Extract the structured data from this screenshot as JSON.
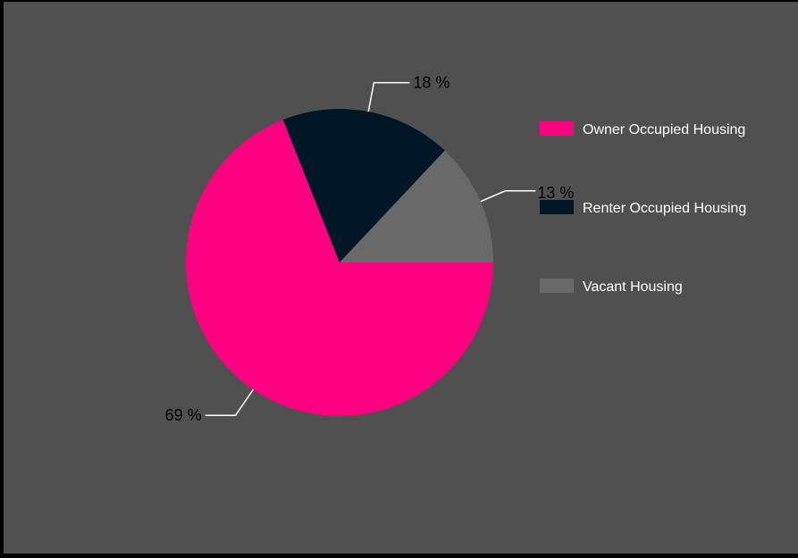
{
  "chart_data": {
    "type": "pie",
    "title": "",
    "categories": [
      "Owner Occupied Housing",
      "Renter Occupied Housing",
      "Vacant Housing"
    ],
    "values": [
      69,
      18,
      13
    ],
    "value_labels": [
      "69 %",
      "18 %",
      "13 %"
    ],
    "colors": [
      "#ff0080",
      "#011627",
      "#696969"
    ],
    "legend_position": "right",
    "start_angle_deg": 0,
    "direction": "clockwise"
  }
}
